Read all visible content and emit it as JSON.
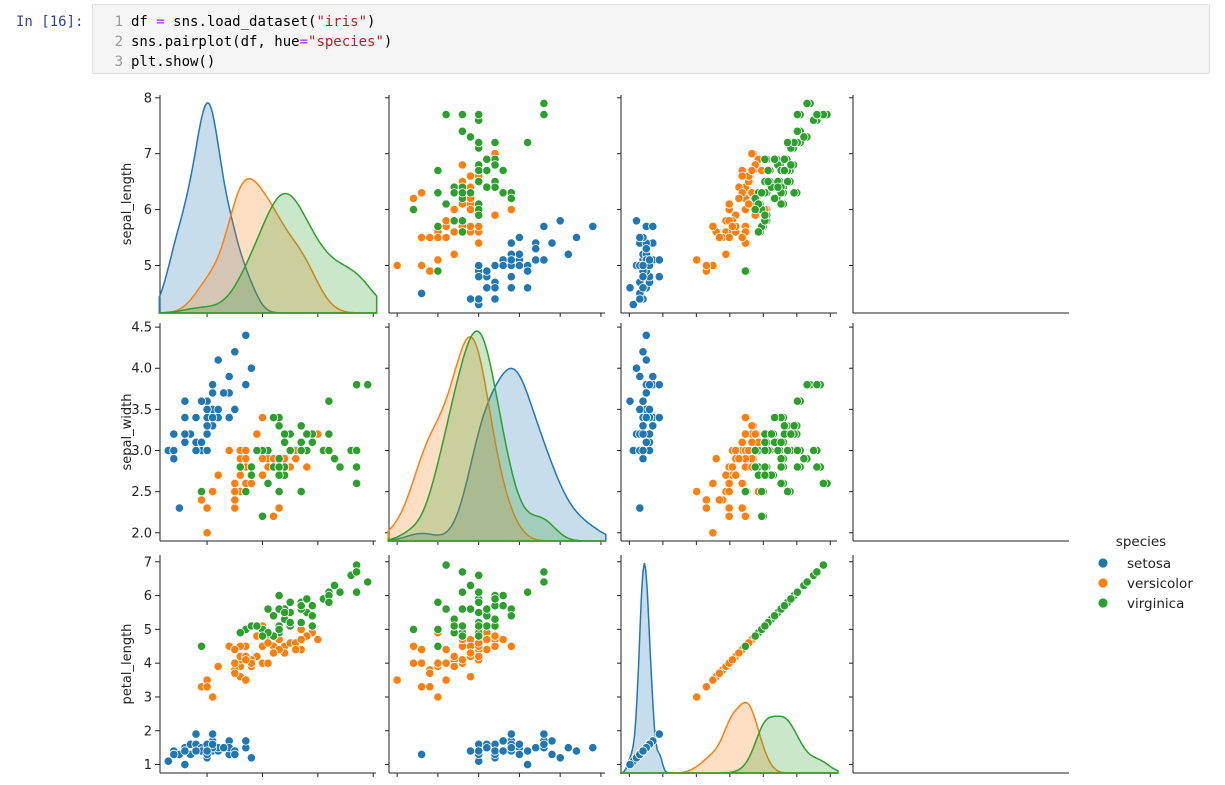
{
  "cell": {
    "prompt": "In [16]:",
    "lines": [
      {
        "num": "1",
        "tokens": [
          [
            "plain",
            "df "
          ],
          [
            "op",
            "="
          ],
          [
            "plain",
            " sns.load_dataset("
          ],
          [
            "str",
            "\"iris\""
          ],
          [
            "plain",
            ")"
          ]
        ]
      },
      {
        "num": "2",
        "tokens": [
          [
            "plain",
            "sns.pairplot(df, hue"
          ],
          [
            "op",
            "="
          ],
          [
            "str",
            "\"species\""
          ],
          [
            "plain",
            ")"
          ]
        ]
      },
      {
        "num": "3",
        "tokens": [
          [
            "plain",
            "plt.show()"
          ]
        ]
      }
    ]
  },
  "colors": {
    "setosa": "#1f77b4",
    "versicolor": "#ff7f0e",
    "virginica": "#2ca02c"
  },
  "chart_data": {
    "type": "scatter",
    "variables": [
      "sepal_length",
      "sepal_width",
      "petal_length"
    ],
    "axis_ticks": {
      "sepal_length": [
        5,
        6,
        7,
        8
      ],
      "sepal_width": [
        "2.0",
        "2.5",
        "3.0",
        "3.5",
        "4.0",
        "4.5"
      ],
      "petal_length": [
        1,
        2,
        3,
        4,
        5,
        6,
        7
      ]
    },
    "axis_ranges": {
      "sepal_length": [
        4.15,
        8.05
      ],
      "sepal_width": [
        1.9,
        4.55
      ],
      "petal_length": [
        0.75,
        7.2
      ]
    },
    "legend": {
      "title": "species",
      "entries": [
        "setosa",
        "versicolor",
        "virginica"
      ],
      "placement": "right"
    },
    "series": [
      {
        "name": "setosa",
        "points": [
          [
            5.1,
            3.5,
            1.4
          ],
          [
            4.9,
            3.0,
            1.4
          ],
          [
            4.7,
            3.2,
            1.3
          ],
          [
            4.6,
            3.1,
            1.5
          ],
          [
            5.0,
            3.6,
            1.4
          ],
          [
            5.4,
            3.9,
            1.7
          ],
          [
            4.6,
            3.4,
            1.4
          ],
          [
            5.0,
            3.4,
            1.5
          ],
          [
            4.4,
            2.9,
            1.4
          ],
          [
            4.9,
            3.1,
            1.5
          ],
          [
            5.4,
            3.7,
            1.5
          ],
          [
            4.8,
            3.4,
            1.6
          ],
          [
            4.8,
            3.0,
            1.4
          ],
          [
            4.3,
            3.0,
            1.1
          ],
          [
            5.8,
            4.0,
            1.2
          ],
          [
            5.7,
            4.4,
            1.5
          ],
          [
            5.4,
            3.9,
            1.3
          ],
          [
            5.1,
            3.5,
            1.4
          ],
          [
            5.7,
            3.8,
            1.7
          ],
          [
            5.1,
            3.8,
            1.5
          ],
          [
            5.4,
            3.4,
            1.7
          ],
          [
            5.1,
            3.7,
            1.5
          ],
          [
            4.6,
            3.6,
            1.0
          ],
          [
            5.1,
            3.3,
            1.7
          ],
          [
            4.8,
            3.4,
            1.9
          ],
          [
            5.0,
            3.0,
            1.6
          ],
          [
            5.0,
            3.4,
            1.6
          ],
          [
            5.2,
            3.5,
            1.5
          ],
          [
            5.2,
            3.4,
            1.4
          ],
          [
            4.7,
            3.2,
            1.6
          ],
          [
            4.8,
            3.1,
            1.6
          ],
          [
            5.4,
            3.4,
            1.5
          ],
          [
            5.2,
            4.1,
            1.5
          ],
          [
            5.5,
            4.2,
            1.4
          ],
          [
            4.9,
            3.1,
            1.5
          ],
          [
            5.0,
            3.2,
            1.2
          ],
          [
            5.5,
            3.5,
            1.3
          ],
          [
            4.9,
            3.6,
            1.4
          ],
          [
            4.4,
            3.0,
            1.3
          ],
          [
            5.1,
            3.4,
            1.5
          ],
          [
            5.0,
            3.5,
            1.3
          ],
          [
            4.5,
            2.3,
            1.3
          ],
          [
            4.4,
            3.2,
            1.3
          ],
          [
            5.0,
            3.5,
            1.6
          ],
          [
            5.1,
            3.8,
            1.9
          ],
          [
            4.8,
            3.0,
            1.4
          ],
          [
            5.1,
            3.8,
            1.6
          ],
          [
            4.6,
            3.2,
            1.4
          ],
          [
            5.3,
            3.7,
            1.5
          ],
          [
            5.0,
            3.3,
            1.4
          ]
        ]
      },
      {
        "name": "versicolor",
        "points": [
          [
            7.0,
            3.2,
            4.7
          ],
          [
            6.4,
            3.2,
            4.5
          ],
          [
            6.9,
            3.1,
            4.9
          ],
          [
            5.5,
            2.3,
            4.0
          ],
          [
            6.5,
            2.8,
            4.6
          ],
          [
            5.7,
            2.8,
            4.5
          ],
          [
            6.3,
            3.3,
            4.7
          ],
          [
            4.9,
            2.4,
            3.3
          ],
          [
            6.6,
            2.9,
            4.6
          ],
          [
            5.2,
            2.7,
            3.9
          ],
          [
            5.0,
            2.0,
            3.5
          ],
          [
            5.9,
            3.0,
            4.2
          ],
          [
            6.0,
            2.2,
            4.0
          ],
          [
            6.1,
            2.9,
            4.7
          ],
          [
            5.6,
            2.9,
            3.6
          ],
          [
            6.7,
            3.1,
            4.4
          ],
          [
            5.6,
            3.0,
            4.5
          ],
          [
            5.8,
            2.7,
            4.1
          ],
          [
            6.2,
            2.2,
            4.5
          ],
          [
            5.6,
            2.5,
            3.9
          ],
          [
            5.9,
            3.2,
            4.8
          ],
          [
            6.1,
            2.8,
            4.0
          ],
          [
            6.3,
            2.5,
            4.9
          ],
          [
            6.1,
            2.8,
            4.7
          ],
          [
            6.4,
            2.9,
            4.3
          ],
          [
            6.6,
            3.0,
            4.4
          ],
          [
            6.8,
            2.8,
            4.8
          ],
          [
            6.7,
            3.0,
            5.0
          ],
          [
            6.0,
            2.9,
            4.5
          ],
          [
            5.7,
            2.6,
            3.5
          ],
          [
            5.5,
            2.4,
            3.8
          ],
          [
            5.5,
            2.4,
            3.7
          ],
          [
            5.8,
            2.7,
            3.9
          ],
          [
            6.0,
            2.7,
            5.1
          ],
          [
            5.4,
            3.0,
            4.5
          ],
          [
            6.0,
            3.4,
            4.5
          ],
          [
            6.7,
            3.1,
            4.7
          ],
          [
            6.3,
            2.3,
            4.4
          ],
          [
            5.6,
            3.0,
            4.1
          ],
          [
            5.5,
            2.5,
            4.0
          ],
          [
            5.5,
            2.6,
            4.4
          ],
          [
            6.1,
            3.0,
            4.6
          ],
          [
            5.8,
            2.6,
            4.0
          ],
          [
            5.0,
            2.3,
            3.3
          ],
          [
            5.6,
            2.7,
            4.2
          ],
          [
            5.7,
            3.0,
            4.2
          ],
          [
            5.7,
            2.9,
            4.2
          ],
          [
            6.2,
            2.9,
            4.3
          ],
          [
            5.1,
            2.5,
            3.0
          ],
          [
            5.7,
            2.8,
            4.1
          ]
        ]
      },
      {
        "name": "virginica",
        "points": [
          [
            6.3,
            3.3,
            6.0
          ],
          [
            5.8,
            2.7,
            5.1
          ],
          [
            7.1,
            3.0,
            5.9
          ],
          [
            6.3,
            2.9,
            5.6
          ],
          [
            6.5,
            3.0,
            5.8
          ],
          [
            7.6,
            3.0,
            6.6
          ],
          [
            4.9,
            2.5,
            4.5
          ],
          [
            7.3,
            2.9,
            6.3
          ],
          [
            6.7,
            2.5,
            5.8
          ],
          [
            7.2,
            3.6,
            6.1
          ],
          [
            6.5,
            3.2,
            5.1
          ],
          [
            6.4,
            2.7,
            5.3
          ],
          [
            6.8,
            3.0,
            5.5
          ],
          [
            5.7,
            2.5,
            5.0
          ],
          [
            5.8,
            2.8,
            5.1
          ],
          [
            6.4,
            3.2,
            5.3
          ],
          [
            6.5,
            3.0,
            5.5
          ],
          [
            7.7,
            3.8,
            6.7
          ],
          [
            7.7,
            2.6,
            6.9
          ],
          [
            6.0,
            2.2,
            5.0
          ],
          [
            6.9,
            3.2,
            5.7
          ],
          [
            5.6,
            2.8,
            4.9
          ],
          [
            7.7,
            2.8,
            6.7
          ],
          [
            6.3,
            2.7,
            4.9
          ],
          [
            6.7,
            3.3,
            5.7
          ],
          [
            7.2,
            3.2,
            6.0
          ],
          [
            6.2,
            2.8,
            4.8
          ],
          [
            6.1,
            3.0,
            4.9
          ],
          [
            6.4,
            2.8,
            5.6
          ],
          [
            7.2,
            3.0,
            5.8
          ],
          [
            7.4,
            2.8,
            6.1
          ],
          [
            7.9,
            3.8,
            6.4
          ],
          [
            6.4,
            2.8,
            5.6
          ],
          [
            6.3,
            2.8,
            5.1
          ],
          [
            6.1,
            2.6,
            5.6
          ],
          [
            7.7,
            3.0,
            6.1
          ],
          [
            6.3,
            3.4,
            5.6
          ],
          [
            6.4,
            3.1,
            5.5
          ],
          [
            6.0,
            3.0,
            4.8
          ],
          [
            6.9,
            3.1,
            5.4
          ],
          [
            6.7,
            3.1,
            5.6
          ],
          [
            6.9,
            3.1,
            5.1
          ],
          [
            5.8,
            2.7,
            5.1
          ],
          [
            6.8,
            3.2,
            5.9
          ],
          [
            6.7,
            3.3,
            5.7
          ],
          [
            6.7,
            3.0,
            5.2
          ],
          [
            6.3,
            2.5,
            5.0
          ],
          [
            6.5,
            3.0,
            5.2
          ],
          [
            6.2,
            3.4,
            5.4
          ],
          [
            5.9,
            3.0,
            5.1
          ]
        ]
      }
    ]
  }
}
